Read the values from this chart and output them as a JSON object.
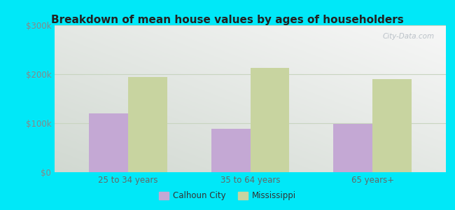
{
  "title": "Breakdown of mean house values by ages of householders",
  "categories": [
    "25 to 34 years",
    "35 to 64 years",
    "65 years+"
  ],
  "calhoun_city": [
    120000,
    88000,
    98000
  ],
  "mississippi": [
    195000,
    213000,
    190000
  ],
  "bar_color_calhoun": "#c4a8d4",
  "bar_color_mississippi": "#c8d4a0",
  "ylim": [
    0,
    300000
  ],
  "ytick_labels": [
    "$0",
    "$100k",
    "$200k",
    "$300k"
  ],
  "background_outer": "#00e8f8",
  "grid_color": "#c8d4c0",
  "legend_labels": [
    "Calhoun City",
    "Mississippi"
  ],
  "watermark": "City-Data.com",
  "bar_width": 0.32,
  "title_color": "#222222",
  "tick_label_color": "#888888",
  "xtick_label_color": "#666666"
}
